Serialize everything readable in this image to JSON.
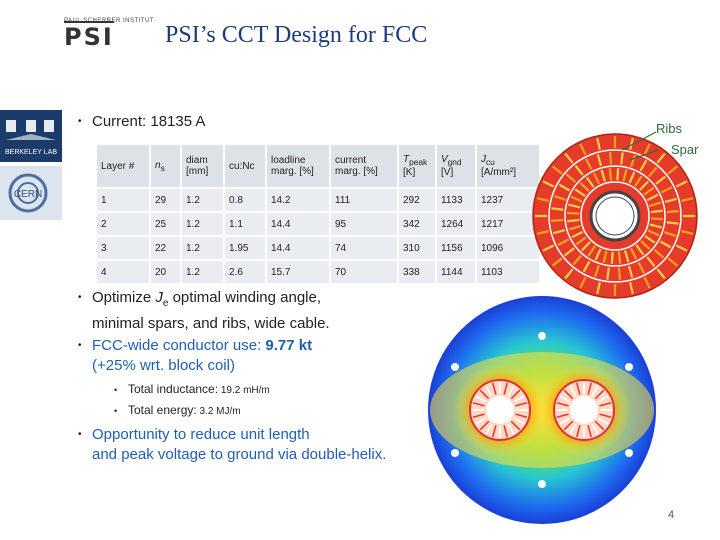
{
  "header": {
    "title": "PSI’s CCT Design for FCC",
    "psi_logo_small_text": "PAUL SCHERRER INSTITUT",
    "psi_logo_text": "PSI"
  },
  "side_logos": {
    "berkeley": "BERKELEY LAB",
    "cern": "CERN"
  },
  "bullets": {
    "current": "Current: 18135 A",
    "optimize_pre": "Optimize ",
    "optimize_je_J": "J",
    "optimize_je_sub": "e",
    "optimize_post": " optimal winding angle,",
    "optimize_line2": "minimal spars, and ribs, wide cable.",
    "fcc_pre": "FCC-wide conductor use: ",
    "fcc_value": "9.77 kt",
    "fcc_line2": "(+25% wrt. block coil)",
    "sub1_label": "Total inductance:",
    "sub1_value": " 19.2 mH/m",
    "sub2_label": "Total energy:",
    "sub2_value": " 3.2 MJ/m",
    "opportunity_line1": "Opportunity to reduce unit length",
    "opportunity_line2": "and peak voltage to ground via double-helix."
  },
  "table": {
    "headers": {
      "layer": "Layer #",
      "ns": "n",
      "ns_sub": "s",
      "diam_1": "diam",
      "diam_2": "[mm]",
      "cunc": "cu:Nc",
      "loadline_1": "loadline",
      "loadline_2": "marg. [%]",
      "current_1": "current",
      "current_2": "marg. [%]",
      "tpeak": "T",
      "tpeak_sub": "peak",
      "tpeak_unit": "[K]",
      "vgnd": "V",
      "vgnd_sub": "gnd",
      "vgnd_unit": "[V]",
      "jcu": "J",
      "jcu_sub": "cu",
      "jcu_unit": "[A/mm²]"
    },
    "rows": [
      [
        "1",
        "29",
        "1.2",
        "0.8",
        "14.2",
        "111",
        "292",
        "1133",
        "1237"
      ],
      [
        "2",
        "25",
        "1.2",
        "1.1",
        "14.4",
        "95",
        "342",
        "1264",
        "1217"
      ],
      [
        "3",
        "22",
        "1.2",
        "1.95",
        "14.4",
        "74",
        "310",
        "1156",
        "1096"
      ],
      [
        "4",
        "20",
        "1.2",
        "2.6",
        "15.7",
        "70",
        "338",
        "1144",
        "1103"
      ]
    ]
  },
  "annotations": {
    "ribs": "Ribs",
    "spar": "Spar"
  },
  "page_number": "4",
  "colors": {
    "title": "#1a3d7a",
    "accent_blue": "#1f5fb0",
    "coil_red": "#e53b2a",
    "coil_orange": "#f6a21e",
    "annotation": "#2f6b3a"
  }
}
